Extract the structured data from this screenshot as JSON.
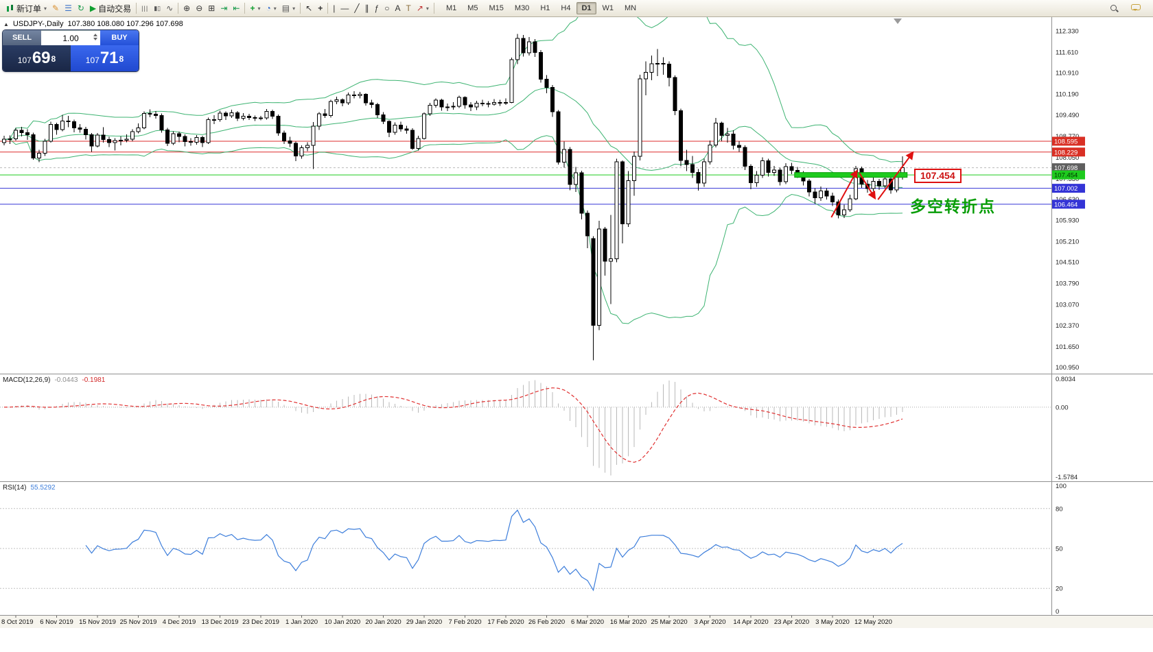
{
  "toolbar": {
    "buttons": [
      {
        "name": "new-order",
        "icon": "candles",
        "label": "新订单",
        "dropdown": true
      },
      {
        "name": "metaeditor",
        "icon": "pencil"
      },
      {
        "name": "market-watch",
        "icon": "list"
      },
      {
        "name": "refresh-charts",
        "icon": "refresh"
      },
      {
        "name": "autotrading",
        "icon": "play",
        "label": "自动交易"
      },
      {
        "sep": true
      },
      {
        "name": "bar-chart-view",
        "icon": "bars"
      },
      {
        "name": "candlestick-view",
        "icon": "candle"
      },
      {
        "name": "line-chart-view",
        "icon": "line"
      },
      {
        "sep": true
      },
      {
        "name": "zoom-in",
        "icon": "zoom-in"
      },
      {
        "name": "zoom-out",
        "icon": "zoom-out"
      },
      {
        "name": "tile-windows",
        "icon": "grid"
      },
      {
        "name": "auto-scroll",
        "icon": "autoscroll"
      },
      {
        "name": "chart-shift",
        "icon": "shift"
      },
      {
        "sep": true
      },
      {
        "name": "new-chart",
        "icon": "plus-chart",
        "dropdown": true
      },
      {
        "name": "periods",
        "icon": "clock",
        "dropdown": true
      },
      {
        "name": "templates",
        "icon": "template",
        "dropdown": true
      },
      {
        "sep": true
      },
      {
        "name": "cursor",
        "icon": "cursor"
      },
      {
        "name": "crosshair",
        "icon": "crosshair"
      },
      {
        "sep": true
      },
      {
        "name": "vertical-line",
        "icon": "vline"
      },
      {
        "name": "horizontal-line",
        "icon": "hline"
      },
      {
        "name": "trendline",
        "icon": "tline"
      },
      {
        "name": "equidistant-channel",
        "icon": "channel"
      },
      {
        "name": "fibonacci-retracement",
        "icon": "fibo"
      },
      {
        "name": "shapes",
        "icon": "ellipse"
      },
      {
        "name": "text",
        "icon": "text"
      },
      {
        "name": "text-label",
        "icon": "label"
      },
      {
        "name": "arrow-objects",
        "icon": "arrow",
        "dropdown": true
      },
      {
        "sep": true
      }
    ],
    "timeframes": [
      {
        "label": "M1"
      },
      {
        "label": "M5"
      },
      {
        "label": "M15"
      },
      {
        "label": "M30"
      },
      {
        "label": "H1"
      },
      {
        "label": "H4"
      },
      {
        "label": "D1",
        "active": true
      },
      {
        "label": "W1"
      },
      {
        "label": "MN"
      }
    ],
    "right_buttons": [
      {
        "name": "search-symbol",
        "icon": "search"
      },
      {
        "name": "community-chat",
        "icon": "chat"
      }
    ]
  },
  "chart": {
    "title": "USDJPY-,Daily",
    "ohlc": "107.380 108.080 107.296 107.698",
    "trade_panel": {
      "sell_label": "SELL",
      "buy_label": "BUY",
      "volume": "1.00",
      "sell_base": "107",
      "sell_pips": "69",
      "sell_frac": "8",
      "buy_base": "107",
      "buy_pips": "71",
      "buy_frac": "8"
    },
    "axis_labels": [
      "112.330",
      "111.610",
      "110.910",
      "110.190",
      "109.490",
      "108.770",
      "108.050",
      "107.330",
      "106.630",
      "105.930",
      "105.210",
      "104.510",
      "103.790",
      "103.070",
      "102.370",
      "101.650",
      "100.950"
    ],
    "levels": [
      {
        "price": 108.595,
        "label": "108.595",
        "style": "red"
      },
      {
        "price": 108.229,
        "label": "108.229",
        "style": "red"
      },
      {
        "price": 107.698,
        "label": "107.698",
        "style": "current"
      },
      {
        "price": 107.454,
        "label": "107.454",
        "style": "green"
      },
      {
        "price": 107.002,
        "label": "107.002",
        "style": "blue"
      },
      {
        "price": 106.464,
        "label": "106.464",
        "style": "blue"
      }
    ],
    "green_band": {
      "price": 107.454,
      "from_bar": 135.5,
      "to_bar": 154.8
    },
    "price_tag": "107.454",
    "annotation": "多空转折点",
    "arrows": [
      {
        "from_bar": 141.8,
        "from_price": 106.02,
        "to_bar": 146.2,
        "to_price": 107.6
      },
      {
        "from_bar": 146.6,
        "from_price": 107.52,
        "to_bar": 149.3,
        "to_price": 106.66
      },
      {
        "from_bar": 149.8,
        "from_price": 106.62,
        "to_bar": 155.8,
        "to_price": 108.22
      }
    ],
    "accent_colors": {
      "bollinger": "#3cb371",
      "up_candle": "#ffffff",
      "down_candle": "#000000",
      "annotation_green": "#089d08",
      "object_red": "#e01010"
    }
  },
  "chart_data": {
    "type": "candlestick",
    "symbol": "USDJPY-",
    "period": "Daily",
    "indicators": {
      "bollinger_period": 20,
      "bollinger_deviation": 2,
      "macd": [
        12,
        26,
        9
      ],
      "rsi_period": 14
    },
    "candles": [
      [
        108.55,
        108.78,
        108.45,
        108.66
      ],
      [
        108.66,
        108.79,
        108.5,
        108.67
      ],
      [
        108.67,
        109.05,
        108.62,
        108.96
      ],
      [
        108.96,
        109.08,
        108.76,
        108.88
      ],
      [
        108.88,
        109.0,
        108.64,
        108.82
      ],
      [
        108.82,
        108.88,
        107.97,
        108.03
      ],
      [
        108.03,
        108.31,
        107.89,
        108.19
      ],
      [
        108.19,
        108.68,
        108.1,
        108.6
      ],
      [
        108.6,
        109.25,
        108.55,
        109.16
      ],
      [
        109.16,
        109.22,
        108.81,
        108.99
      ],
      [
        108.99,
        109.49,
        108.93,
        109.28
      ],
      [
        109.28,
        109.45,
        109.07,
        109.26
      ],
      [
        109.26,
        109.32,
        108.9,
        109.05
      ],
      [
        109.05,
        109.17,
        108.88,
        109.0
      ],
      [
        109.0,
        109.08,
        108.65,
        108.82
      ],
      [
        108.82,
        108.87,
        108.24,
        108.43
      ],
      [
        108.43,
        108.87,
        108.38,
        108.8
      ],
      [
        108.8,
        109.07,
        108.55,
        108.65
      ],
      [
        108.65,
        108.74,
        108.4,
        108.55
      ],
      [
        108.55,
        108.7,
        108.28,
        108.62
      ],
      [
        108.62,
        108.76,
        108.45,
        108.63
      ],
      [
        108.63,
        108.83,
        108.56,
        108.66
      ],
      [
        108.66,
        109.0,
        108.6,
        108.92
      ],
      [
        108.92,
        109.2,
        108.86,
        109.05
      ],
      [
        109.05,
        109.6,
        109.0,
        109.53
      ],
      [
        109.53,
        109.67,
        109.41,
        109.51
      ],
      [
        109.51,
        109.61,
        109.36,
        109.46
      ],
      [
        109.46,
        109.53,
        108.88,
        108.98
      ],
      [
        108.98,
        109.05,
        108.43,
        108.53
      ],
      [
        108.53,
        108.93,
        108.47,
        108.85
      ],
      [
        108.85,
        108.92,
        108.56,
        108.76
      ],
      [
        108.76,
        108.83,
        108.42,
        108.58
      ],
      [
        108.58,
        108.7,
        108.44,
        108.56
      ],
      [
        108.56,
        108.8,
        108.48,
        108.72
      ],
      [
        108.72,
        108.78,
        108.4,
        108.55
      ],
      [
        108.55,
        109.4,
        108.5,
        109.32
      ],
      [
        109.32,
        109.48,
        109.18,
        109.33
      ],
      [
        109.33,
        109.63,
        109.26,
        109.55
      ],
      [
        109.55,
        109.6,
        109.31,
        109.45
      ],
      [
        109.45,
        109.66,
        109.38,
        109.56
      ],
      [
        109.56,
        109.62,
        109.28,
        109.37
      ],
      [
        109.37,
        109.54,
        109.3,
        109.44
      ],
      [
        109.44,
        109.52,
        109.31,
        109.39
      ],
      [
        109.39,
        109.46,
        109.28,
        109.37
      ],
      [
        109.37,
        109.45,
        109.3,
        109.38
      ],
      [
        109.38,
        109.69,
        109.33,
        109.6
      ],
      [
        109.6,
        109.66,
        109.35,
        109.44
      ],
      [
        109.44,
        109.5,
        108.78,
        108.87
      ],
      [
        108.87,
        108.95,
        108.5,
        108.61
      ],
      [
        108.61,
        108.74,
        108.4,
        108.52
      ],
      [
        108.52,
        108.58,
        107.92,
        108.09
      ],
      [
        108.09,
        108.46,
        108.0,
        108.37
      ],
      [
        108.37,
        108.56,
        108.26,
        108.45
      ],
      [
        108.45,
        109.24,
        107.65,
        109.11
      ],
      [
        109.11,
        109.58,
        108.98,
        109.52
      ],
      [
        109.52,
        109.68,
        109.38,
        109.46
      ],
      [
        109.46,
        110.0,
        109.4,
        109.94
      ],
      [
        109.94,
        110.1,
        109.85,
        110.0
      ],
      [
        110.0,
        110.05,
        109.78,
        109.89
      ],
      [
        109.89,
        110.24,
        109.82,
        110.16
      ],
      [
        110.16,
        110.29,
        110.04,
        110.14
      ],
      [
        110.14,
        110.26,
        110.05,
        110.18
      ],
      [
        110.18,
        110.22,
        109.8,
        109.89
      ],
      [
        109.89,
        110.0,
        109.72,
        109.84
      ],
      [
        109.84,
        109.89,
        109.38,
        109.49
      ],
      [
        109.49,
        109.58,
        109.18,
        109.27
      ],
      [
        109.27,
        109.3,
        108.73,
        108.9
      ],
      [
        108.9,
        109.23,
        108.82,
        109.14
      ],
      [
        109.14,
        109.25,
        108.92,
        109.01
      ],
      [
        109.01,
        109.12,
        108.85,
        108.96
      ],
      [
        108.96,
        109.03,
        108.3,
        108.35
      ],
      [
        108.35,
        108.78,
        108.28,
        108.69
      ],
      [
        108.69,
        109.57,
        108.65,
        109.52
      ],
      [
        109.52,
        109.89,
        109.45,
        109.81
      ],
      [
        109.81,
        110.05,
        109.73,
        109.99
      ],
      [
        109.99,
        110.03,
        109.63,
        109.75
      ],
      [
        109.75,
        109.87,
        109.62,
        109.75
      ],
      [
        109.75,
        109.92,
        109.66,
        109.78
      ],
      [
        109.78,
        110.14,
        109.72,
        110.08
      ],
      [
        110.08,
        110.12,
        109.7,
        109.82
      ],
      [
        109.82,
        109.92,
        109.62,
        109.75
      ],
      [
        109.75,
        109.96,
        109.65,
        109.88
      ],
      [
        109.88,
        110.0,
        109.78,
        109.87
      ],
      [
        109.87,
        109.95,
        109.74,
        109.85
      ],
      [
        109.85,
        110.02,
        109.8,
        109.9
      ],
      [
        109.9,
        110.0,
        109.79,
        109.89
      ],
      [
        109.89,
        110.05,
        109.83,
        109.91
      ],
      [
        109.91,
        111.42,
        109.88,
        111.35
      ],
      [
        111.35,
        112.22,
        111.2,
        112.08
      ],
      [
        112.08,
        112.19,
        111.46,
        111.59
      ],
      [
        111.59,
        112.12,
        111.5,
        111.96
      ],
      [
        111.96,
        112.05,
        111.45,
        111.6
      ],
      [
        111.6,
        111.68,
        110.58,
        110.7
      ],
      [
        110.7,
        110.83,
        110.22,
        110.42
      ],
      [
        110.42,
        110.5,
        109.42,
        109.59
      ],
      [
        109.59,
        109.65,
        107.8,
        107.89
      ],
      [
        107.89,
        108.58,
        107.7,
        108.32
      ],
      [
        108.32,
        108.4,
        106.93,
        107.13
      ],
      [
        107.13,
        107.72,
        106.88,
        107.53
      ],
      [
        107.53,
        107.6,
        105.95,
        106.16
      ],
      [
        106.16,
        106.25,
        104.98,
        105.39
      ],
      [
        105.3,
        105.38,
        101.18,
        102.36
      ],
      [
        102.36,
        105.9,
        102.2,
        105.63
      ],
      [
        105.63,
        105.7,
        104.05,
        104.53
      ],
      [
        104.53,
        106.1,
        103.08,
        104.62
      ],
      [
        104.62,
        108.0,
        104.5,
        107.9
      ],
      [
        107.9,
        107.95,
        105.14,
        105.8
      ],
      [
        105.8,
        107.58,
        105.7,
        107.26
      ],
      [
        107.26,
        108.25,
        106.75,
        108.08
      ],
      [
        108.08,
        110.85,
        107.95,
        110.71
      ],
      [
        110.71,
        111.3,
        110.15,
        110.93
      ],
      [
        110.93,
        111.49,
        110.66,
        111.22
      ],
      [
        111.22,
        111.71,
        110.8,
        111.23
      ],
      [
        111.23,
        111.44,
        110.85,
        111.2
      ],
      [
        111.2,
        111.3,
        110.45,
        110.75
      ],
      [
        110.75,
        110.82,
        109.48,
        109.63
      ],
      [
        109.63,
        109.7,
        107.75,
        107.94
      ],
      [
        107.94,
        108.3,
        107.58,
        107.81
      ],
      [
        107.81,
        108.1,
        107.35,
        107.54
      ],
      [
        107.54,
        107.66,
        106.92,
        107.18
      ],
      [
        107.18,
        108.0,
        107.05,
        107.9
      ],
      [
        107.9,
        108.62,
        107.8,
        108.47
      ],
      [
        108.47,
        109.38,
        108.38,
        109.21
      ],
      [
        109.21,
        109.26,
        108.6,
        108.79
      ],
      [
        108.79,
        109.05,
        108.55,
        108.84
      ],
      [
        108.84,
        108.96,
        108.32,
        108.45
      ],
      [
        108.45,
        108.6,
        108.23,
        108.38
      ],
      [
        108.38,
        108.45,
        107.62,
        107.75
      ],
      [
        107.75,
        107.82,
        106.97,
        107.19
      ],
      [
        107.19,
        107.58,
        107.05,
        107.45
      ],
      [
        107.45,
        108.05,
        107.35,
        107.93
      ],
      [
        107.93,
        108.0,
        107.4,
        107.54
      ],
      [
        107.54,
        107.76,
        107.42,
        107.62
      ],
      [
        107.62,
        107.7,
        107.1,
        107.22
      ],
      [
        107.22,
        107.85,
        107.14,
        107.74
      ],
      [
        107.74,
        107.86,
        107.48,
        107.61
      ],
      [
        107.61,
        107.72,
        107.35,
        107.5
      ],
      [
        107.5,
        107.58,
        107.1,
        107.25
      ],
      [
        107.25,
        107.32,
        106.73,
        106.88
      ],
      [
        106.88,
        107.0,
        106.48,
        106.68
      ],
      [
        106.68,
        107.06,
        106.58,
        106.91
      ],
      [
        106.91,
        107.0,
        106.62,
        106.74
      ],
      [
        106.74,
        106.85,
        106.4,
        106.54
      ],
      [
        106.54,
        106.62,
        105.98,
        106.1
      ],
      [
        106.1,
        106.45,
        106.0,
        106.28
      ],
      [
        106.28,
        106.78,
        106.2,
        106.65
      ],
      [
        106.65,
        107.76,
        106.6,
        107.67
      ],
      [
        107.67,
        107.74,
        107.02,
        107.15
      ],
      [
        107.15,
        107.28,
        106.85,
        106.99
      ],
      [
        106.99,
        107.38,
        106.9,
        107.24
      ],
      [
        107.24,
        107.32,
        106.95,
        107.09
      ],
      [
        107.09,
        107.45,
        107.0,
        107.32
      ],
      [
        107.32,
        107.4,
        106.82,
        106.95
      ],
      [
        106.95,
        107.46,
        106.87,
        107.38
      ],
      [
        107.38,
        108.08,
        107.296,
        107.698
      ]
    ]
  },
  "macd_panel": {
    "label": "MACD(12,26,9)",
    "value_main": "-0.0443",
    "value_signal": "-0.1981",
    "axis": [
      "0.8034",
      "0.00",
      "-1.5784"
    ]
  },
  "rsi_panel": {
    "label": "RSI(14)",
    "value": "55.5292",
    "axis": [
      "100",
      "80",
      "50",
      "20",
      "0"
    ],
    "levels": [
      80,
      50,
      20
    ]
  },
  "timeline": {
    "first_bar": 2,
    "step": 7,
    "labels": [
      "8 Oct 2019",
      "6 Nov 2019",
      "15 Nov 2019",
      "25 Nov 2019",
      "4 Dec 2019",
      "13 Dec 2019",
      "23 Dec 2019",
      "1 Jan 2020",
      "10 Jan 2020",
      "20 Jan 2020",
      "29 Jan 2020",
      "7 Feb 2020",
      "17 Feb 2020",
      "26 Feb 2020",
      "6 Mar 2020",
      "16 Mar 2020",
      "25 Mar 2020",
      "3 Apr 2020",
      "14 Apr 2020",
      "23 Apr 2020",
      "3 May 2020",
      "12 May 2020"
    ]
  }
}
